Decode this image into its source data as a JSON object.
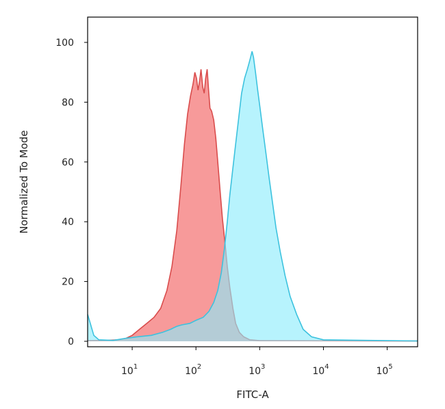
{
  "chart_data": {
    "type": "area",
    "title": "",
    "xlabel": "FITC-A",
    "ylabel": "Normalized To Mode",
    "x_scale": "log",
    "xlim": [
      2,
      300000
    ],
    "ylim": [
      0,
      100
    ],
    "x_ticks": [
      {
        "base": "10",
        "exp": "1",
        "value": 10
      },
      {
        "base": "10",
        "exp": "2",
        "value": 100
      },
      {
        "base": "10",
        "exp": "3",
        "value": 1000
      },
      {
        "base": "10",
        "exp": "4",
        "value": 10000
      },
      {
        "base": "10",
        "exp": "5",
        "value": 100000
      }
    ],
    "y_ticks": [
      {
        "label": "0",
        "value": 0
      },
      {
        "label": "20",
        "value": 20
      },
      {
        "label": "40",
        "value": 40
      },
      {
        "label": "60",
        "value": 60
      },
      {
        "label": "80",
        "value": 80
      },
      {
        "label": "100",
        "value": 100
      }
    ],
    "grid": false,
    "series": [
      {
        "color_fill": "#f79a9a",
        "color_line": "#d94c4c",
        "points": [
          [
            2,
            0.2
          ],
          [
            4,
            0.3
          ],
          [
            6,
            0.5
          ],
          [
            8,
            1
          ],
          [
            10,
            2
          ],
          [
            13,
            4
          ],
          [
            17,
            6
          ],
          [
            22,
            8
          ],
          [
            28,
            11
          ],
          [
            35,
            17
          ],
          [
            42,
            25
          ],
          [
            50,
            37
          ],
          [
            58,
            52
          ],
          [
            66,
            66
          ],
          [
            74,
            76
          ],
          [
            82,
            82
          ],
          [
            90,
            86
          ],
          [
            96,
            90
          ],
          [
            102,
            88
          ],
          [
            108,
            84
          ],
          [
            114,
            87
          ],
          [
            120,
            91
          ],
          [
            128,
            85
          ],
          [
            135,
            83
          ],
          [
            142,
            88
          ],
          [
            150,
            91
          ],
          [
            158,
            84
          ],
          [
            166,
            78
          ],
          [
            176,
            77
          ],
          [
            190,
            74
          ],
          [
            205,
            68
          ],
          [
            220,
            60
          ],
          [
            240,
            50
          ],
          [
            260,
            41
          ],
          [
            285,
            33
          ],
          [
            310,
            25
          ],
          [
            340,
            18
          ],
          [
            380,
            11
          ],
          [
            420,
            6
          ],
          [
            480,
            3
          ],
          [
            560,
            1.5
          ],
          [
            700,
            0.5
          ],
          [
            1000,
            0.2
          ],
          [
            300000,
            0.1
          ]
        ]
      },
      {
        "color_fill": "#8aebfb",
        "color_line": "#3cc2de",
        "points": [
          [
            2,
            9
          ],
          [
            2.2,
            6
          ],
          [
            2.5,
            2
          ],
          [
            3,
            0.5
          ],
          [
            5,
            0.3
          ],
          [
            8,
            1
          ],
          [
            12,
            1.5
          ],
          [
            20,
            2
          ],
          [
            30,
            3
          ],
          [
            40,
            4
          ],
          [
            50,
            5
          ],
          [
            60,
            5.5
          ],
          [
            80,
            6
          ],
          [
            100,
            7
          ],
          [
            130,
            8
          ],
          [
            160,
            10
          ],
          [
            190,
            13
          ],
          [
            220,
            17
          ],
          [
            250,
            23
          ],
          [
            280,
            31
          ],
          [
            310,
            40
          ],
          [
            340,
            49
          ],
          [
            380,
            58
          ],
          [
            420,
            66
          ],
          [
            470,
            75
          ],
          [
            520,
            83
          ],
          [
            580,
            88
          ],
          [
            640,
            91
          ],
          [
            700,
            94
          ],
          [
            760,
            97
          ],
          [
            800,
            95
          ],
          [
            860,
            90
          ],
          [
            930,
            84
          ],
          [
            1000,
            79
          ],
          [
            1100,
            72
          ],
          [
            1250,
            63
          ],
          [
            1400,
            55
          ],
          [
            1600,
            46
          ],
          [
            1800,
            38
          ],
          [
            2100,
            30
          ],
          [
            2500,
            22
          ],
          [
            3000,
            15
          ],
          [
            3800,
            9
          ],
          [
            4800,
            4
          ],
          [
            6500,
            1.5
          ],
          [
            10000,
            0.5
          ],
          [
            300000,
            0.1
          ]
        ]
      }
    ]
  }
}
